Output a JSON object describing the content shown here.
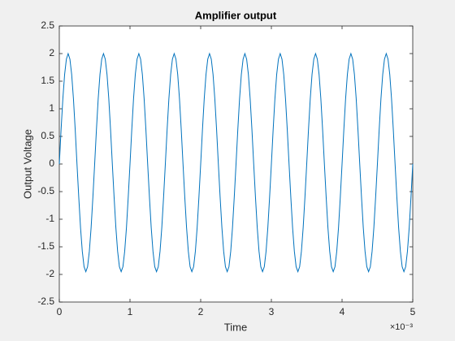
{
  "chart_data": {
    "type": "line",
    "title": "Amplifier output",
    "x_label": "Time",
    "y_label": "Output Voltage",
    "x_exponent_label": "×10⁻³",
    "x": [
      0,
      0.025,
      0.05,
      0.075,
      0.1,
      0.125,
      0.15,
      0.175,
      0.2,
      0.225,
      0.25,
      0.275,
      0.3,
      0.325,
      0.35,
      0.375,
      0.4,
      0.425,
      0.45,
      0.475,
      0.5,
      0.525,
      0.55,
      0.575,
      0.6,
      0.625,
      0.65,
      0.675,
      0.7,
      0.725,
      0.75,
      0.775,
      0.8,
      0.825,
      0.85,
      0.875,
      0.9,
      0.925,
      0.95,
      0.975,
      1,
      1.025,
      1.05,
      1.075,
      1.1,
      1.125,
      1.15,
      1.175,
      1.2,
      1.225,
      1.25,
      1.275,
      1.3,
      1.325,
      1.35,
      1.375,
      1.4,
      1.425,
      1.45,
      1.475,
      1.5,
      1.525,
      1.55,
      1.575,
      1.6,
      1.625,
      1.65,
      1.675,
      1.7,
      1.725,
      1.75,
      1.775,
      1.8,
      1.825,
      1.85,
      1.875,
      1.9,
      1.925,
      1.95,
      1.975,
      2,
      2.025,
      2.05,
      2.075,
      2.1,
      2.125,
      2.15,
      2.175,
      2.2,
      2.225,
      2.25,
      2.275,
      2.3,
      2.325,
      2.35,
      2.375,
      2.4,
      2.425,
      2.45,
      2.475,
      2.5,
      2.525,
      2.55,
      2.575,
      2.6,
      2.625,
      2.65,
      2.675,
      2.7,
      2.725,
      2.75,
      2.775,
      2.8,
      2.825,
      2.85,
      2.875,
      2.9,
      2.925,
      2.95,
      2.975,
      3,
      3.025,
      3.05,
      3.075,
      3.1,
      3.125,
      3.15,
      3.175,
      3.2,
      3.225,
      3.25,
      3.275,
      3.3,
      3.325,
      3.35,
      3.375,
      3.4,
      3.425,
      3.45,
      3.475,
      3.5,
      3.525,
      3.55,
      3.575,
      3.6,
      3.625,
      3.65,
      3.675,
      3.7,
      3.725,
      3.75,
      3.775,
      3.8,
      3.825,
      3.85,
      3.875,
      3.9,
      3.925,
      3.95,
      3.975,
      4,
      4.025,
      4.05,
      4.075,
      4.1,
      4.125,
      4.15,
      4.175,
      4.2,
      4.225,
      4.25,
      4.275,
      4.3,
      4.325,
      4.35,
      4.375,
      4.4,
      4.425,
      4.45,
      4.475,
      4.5,
      4.525,
      4.55,
      4.575,
      4.6,
      4.625,
      4.65,
      4.675,
      4.7,
      4.725,
      4.75,
      4.775,
      4.8,
      4.825,
      4.85,
      4.875,
      4.9,
      4.925,
      4.95,
      4.975,
      5
    ],
    "series": [
      {
        "color": "#0072bd",
        "values": [
          0,
          0.62,
          1.18,
          1.62,
          1.9,
          2,
          1.9,
          1.62,
          1.18,
          0.62,
          0,
          -0.6,
          -1.15,
          -1.58,
          -1.86,
          -1.95,
          -1.86,
          -1.58,
          -1.15,
          -0.6,
          0,
          0.62,
          1.18,
          1.62,
          1.9,
          2,
          1.9,
          1.62,
          1.18,
          0.62,
          0,
          -0.6,
          -1.15,
          -1.58,
          -1.86,
          -1.95,
          -1.86,
          -1.58,
          -1.15,
          -0.6,
          0,
          0.62,
          1.18,
          1.62,
          1.9,
          2,
          1.9,
          1.62,
          1.18,
          0.62,
          0,
          -0.6,
          -1.15,
          -1.58,
          -1.86,
          -1.95,
          -1.86,
          -1.58,
          -1.15,
          -0.6,
          0,
          0.62,
          1.18,
          1.62,
          1.9,
          2,
          1.9,
          1.62,
          1.18,
          0.62,
          0,
          -0.6,
          -1.15,
          -1.58,
          -1.86,
          -1.95,
          -1.86,
          -1.58,
          -1.15,
          -0.6,
          0,
          0.62,
          1.18,
          1.62,
          1.9,
          2,
          1.9,
          1.62,
          1.18,
          0.62,
          0,
          -0.6,
          -1.15,
          -1.58,
          -1.86,
          -1.95,
          -1.86,
          -1.58,
          -1.15,
          -0.6,
          0,
          0.62,
          1.18,
          1.62,
          1.9,
          2,
          1.9,
          1.62,
          1.18,
          0.62,
          0,
          -0.6,
          -1.15,
          -1.58,
          -1.86,
          -1.95,
          -1.86,
          -1.58,
          -1.15,
          -0.6,
          0,
          0.62,
          1.18,
          1.62,
          1.9,
          2,
          1.9,
          1.62,
          1.18,
          0.62,
          0,
          -0.6,
          -1.15,
          -1.58,
          -1.86,
          -1.95,
          -1.86,
          -1.58,
          -1.15,
          -0.6,
          0,
          0.62,
          1.18,
          1.62,
          1.9,
          2,
          1.9,
          1.62,
          1.18,
          0.62,
          0,
          -0.6,
          -1.15,
          -1.58,
          -1.86,
          -1.95,
          -1.86,
          -1.58,
          -1.15,
          -0.6,
          0,
          0.62,
          1.18,
          1.62,
          1.9,
          2,
          1.9,
          1.62,
          1.18,
          0.62,
          0,
          -0.6,
          -1.15,
          -1.58,
          -1.86,
          -1.95,
          -1.86,
          -1.58,
          -1.15,
          -0.6,
          0,
          0.62,
          1.18,
          1.62,
          1.9,
          2,
          1.9,
          1.62,
          1.18,
          0.62,
          0,
          -0.6,
          -1.15,
          -1.58,
          -1.86,
          -1.95,
          -1.86,
          -1.58,
          -1.15,
          -0.6,
          0
        ]
      }
    ],
    "xlim": [
      0,
      5
    ],
    "xticks": [
      0,
      1,
      2,
      3,
      4,
      5
    ],
    "ylim": [
      -2.5,
      2.5
    ],
    "yticks": [
      -2.5,
      -2,
      -1.5,
      -1,
      -0.5,
      0,
      0.5,
      1,
      1.5,
      2,
      2.5
    ],
    "grid": false
  }
}
